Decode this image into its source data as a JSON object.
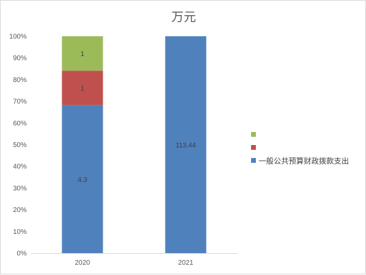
{
  "chart_data": {
    "type": "bar",
    "stacked": "percent",
    "title": "万元",
    "categories": [
      "2020",
      "2021"
    ],
    "series": [
      {
        "name": "一般公共预算财政拨款支出",
        "color": "#4f81bd",
        "values": [
          4.3,
          113.44
        ],
        "labels": [
          "4.3",
          "113.44"
        ]
      },
      {
        "name": "",
        "color": "#c0504d",
        "values": [
          1,
          0
        ],
        "labels": [
          "1",
          ""
        ]
      },
      {
        "name": "",
        "color": "#9bbb59",
        "values": [
          1,
          0
        ],
        "labels": [
          "1",
          ""
        ]
      }
    ],
    "ylim": [
      0,
      100
    ],
    "yticks": [
      "0%",
      "10%",
      "20%",
      "30%",
      "40%",
      "50%",
      "60%",
      "70%",
      "80%",
      "90%",
      "100%"
    ],
    "legend_position": "right",
    "grid": false
  }
}
